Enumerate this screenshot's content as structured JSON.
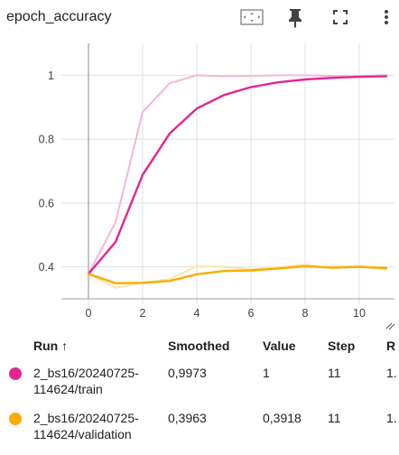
{
  "header": {
    "title": "epoch_accuracy",
    "icons": [
      "fit-domain-icon",
      "pin-icon",
      "fullscreen-icon",
      "more-vert-icon"
    ]
  },
  "table": {
    "columns": {
      "run": "Run",
      "smoothed": "Smoothed",
      "value": "Value",
      "step": "Step",
      "relative": "R"
    },
    "rows": [
      {
        "run": "2_bs16/20240725-\n114624/train",
        "smoothed": "0,9973",
        "value": "1",
        "step": "11",
        "relative": "1.",
        "color": "#e52592"
      },
      {
        "run": "2_bs16/20240725-\n114624/validation",
        "smoothed": "0,3963",
        "value": "0,3918",
        "step": "11",
        "relative": "1.",
        "color": "#f9ab00"
      }
    ]
  },
  "chart_data": {
    "type": "line",
    "xlim": [
      -1,
      11.3
    ],
    "ylim": [
      0.3,
      1.1
    ],
    "x_ticks": [
      0,
      2,
      4,
      6,
      8,
      10
    ],
    "y_ticks": [
      0.4,
      0.6,
      0.8,
      1.0
    ],
    "x_tick_labels": [
      "0",
      "2",
      "4",
      "6",
      "8",
      "10"
    ],
    "y_tick_labels": [
      "0.4",
      "0.6",
      "0.8",
      "1"
    ],
    "grid": true,
    "series": [
      {
        "name": "2_bs16/20240725-114624/train",
        "role": "smoothed",
        "color": "#e52592",
        "x": [
          0,
          1,
          2,
          3,
          4,
          5,
          6,
          7,
          8,
          9,
          10,
          11
        ],
        "y": [
          0.378,
          0.478,
          0.688,
          0.818,
          0.896,
          0.938,
          0.963,
          0.978,
          0.987,
          0.992,
          0.995,
          0.997
        ]
      },
      {
        "name": "2_bs16/20240725-114624/train",
        "role": "raw",
        "color": "#f6b6d9",
        "x": [
          0,
          1,
          2,
          3,
          4,
          5,
          6,
          7,
          8,
          9,
          10,
          11
        ],
        "y": [
          0.378,
          0.54,
          0.885,
          0.975,
          1.0,
          0.997,
          0.998,
          1.0,
          1.0,
          0.998,
          0.997,
          1.0
        ]
      },
      {
        "name": "2_bs16/20240725-114624/validation",
        "role": "smoothed",
        "color": "#f9ab00",
        "x": [
          0,
          1,
          2,
          3,
          4,
          5,
          6,
          7,
          8,
          9,
          10,
          11
        ],
        "y": [
          0.378,
          0.349,
          0.35,
          0.356,
          0.377,
          0.387,
          0.389,
          0.395,
          0.402,
          0.398,
          0.4,
          0.396
        ]
      },
      {
        "name": "2_bs16/20240725-114624/validation",
        "role": "raw",
        "color": "#fde4a8",
        "x": [
          0,
          1,
          2,
          3,
          4,
          5,
          6,
          7,
          8,
          9,
          10,
          11
        ],
        "y": [
          0.378,
          0.335,
          0.35,
          0.362,
          0.402,
          0.4,
          0.392,
          0.398,
          0.408,
          0.394,
          0.402,
          0.392
        ]
      }
    ]
  }
}
